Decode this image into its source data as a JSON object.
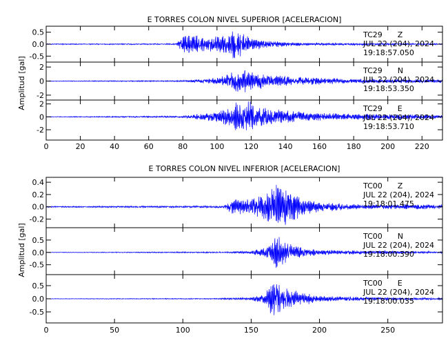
{
  "chart_data": [
    {
      "type": "line",
      "title": "E TORRES COLON NIVEL SUPERIOR [ACELERACION]",
      "ylabel": "Amplitud [gal]",
      "xlim": [
        0,
        232
      ],
      "xticks": [
        0,
        20,
        40,
        60,
        80,
        100,
        120,
        140,
        160,
        180,
        200,
        220
      ],
      "line_color": "#0000ff",
      "series": [
        {
          "name": "TC29 Z",
          "station": "TC29",
          "component": "Z",
          "date": "JUL 22 (204), 2024",
          "time": "19:18:57.050",
          "ylim": [
            -0.75,
            0.75
          ],
          "yticks": [
            "0.5",
            "0.0",
            "-0.5"
          ],
          "yticks_values": [
            0.5,
            0.0,
            -0.5
          ],
          "envelope": [
            [
              0,
              0.02
            ],
            [
              76,
              0.03
            ],
            [
              80,
              0.35
            ],
            [
              86,
              0.45
            ],
            [
              92,
              0.3
            ],
            [
              100,
              0.35
            ],
            [
              108,
              0.55
            ],
            [
              110,
              0.7
            ],
            [
              114,
              0.6
            ],
            [
              120,
              0.3
            ],
            [
              130,
              0.15
            ],
            [
              150,
              0.06
            ],
            [
              232,
              0.03
            ]
          ]
        },
        {
          "name": "TC29 N",
          "station": "TC29",
          "component": "N",
          "date": "JUL 22 (204), 2024",
          "time": "19:18:53.350",
          "ylim": [
            -2.7,
            2.7
          ],
          "yticks": [
            "2",
            "0",
            "-2"
          ],
          "yticks_values": [
            2,
            0,
            -2
          ],
          "envelope": [
            [
              0,
              0.05
            ],
            [
              80,
              0.1
            ],
            [
              96,
              0.4
            ],
            [
              104,
              0.8
            ],
            [
              110,
              1.5
            ],
            [
              114,
              1.9
            ],
            [
              120,
              1.4
            ],
            [
              130,
              0.9
            ],
            [
              150,
              0.6
            ],
            [
              180,
              0.3
            ],
            [
              232,
              0.25
            ]
          ]
        },
        {
          "name": "TC29 E",
          "station": "TC29",
          "component": "E",
          "date": "JUL 22 (204), 2024",
          "time": "19:18:53.710",
          "ylim": [
            -3.6,
            2.6
          ],
          "yticks": [
            "2",
            "0",
            "-2"
          ],
          "yticks_values": [
            2,
            0,
            -2
          ],
          "envelope": [
            [
              0,
              0.05
            ],
            [
              80,
              0.15
            ],
            [
              100,
              0.8
            ],
            [
              108,
              2.0
            ],
            [
              112,
              2.4
            ],
            [
              118,
              2.6
            ],
            [
              124,
              2.0
            ],
            [
              130,
              1.5
            ],
            [
              140,
              1.0
            ],
            [
              160,
              0.6
            ],
            [
              232,
              0.3
            ]
          ]
        }
      ]
    },
    {
      "type": "line",
      "title": "E TORRES COLON NIVEL INFERIOR [ACELERACION]",
      "ylabel": "Amplitud [gal]",
      "xlim": [
        0,
        290
      ],
      "xticks": [
        0,
        50,
        100,
        150,
        200,
        250
      ],
      "line_color": "#0000ff",
      "series": [
        {
          "name": "TC00 Z",
          "station": "TC00",
          "component": "Z",
          "date": "JUL 22 (204), 2024",
          "time": "19:18:01.475",
          "ylim": [
            -0.34,
            0.48
          ],
          "yticks": [
            "0.4",
            "0.2",
            "0.0",
            "-0.2"
          ],
          "yticks_values": [
            0.4,
            0.2,
            0.0,
            -0.2
          ],
          "envelope": [
            [
              0,
              0.01
            ],
            [
              130,
              0.02
            ],
            [
              136,
              0.12
            ],
            [
              150,
              0.15
            ],
            [
              160,
              0.22
            ],
            [
              166,
              0.32
            ],
            [
              170,
              0.4
            ],
            [
              176,
              0.3
            ],
            [
              185,
              0.18
            ],
            [
              200,
              0.08
            ],
            [
              230,
              0.04
            ],
            [
              290,
              0.04
            ]
          ]
        },
        {
          "name": "TC00 N",
          "station": "TC00",
          "component": "N",
          "date": "JUL 22 (204), 2024",
          "time": "19:18:00.390",
          "ylim": [
            -0.9,
            1.0
          ],
          "yticks": [
            "0.5",
            "0.0",
            "-0.5"
          ],
          "yticks_values": [
            0.5,
            0.0,
            -0.5
          ],
          "envelope": [
            [
              0,
              0.01
            ],
            [
              130,
              0.03
            ],
            [
              150,
              0.06
            ],
            [
              162,
              0.25
            ],
            [
              168,
              0.8
            ],
            [
              172,
              0.6
            ],
            [
              180,
              0.3
            ],
            [
              200,
              0.1
            ],
            [
              290,
              0.04
            ]
          ]
        },
        {
          "name": "TC00 E",
          "station": "TC00",
          "component": "E",
          "date": "JUL 22 (204), 2024",
          "time": "19:18:00.035",
          "ylim": [
            -0.92,
            0.92
          ],
          "yticks": [
            "0.5",
            "0.0",
            "-0.5"
          ],
          "yticks_values": [
            0.5,
            0.0,
            -0.5
          ],
          "envelope": [
            [
              0,
              0.01
            ],
            [
              120,
              0.02
            ],
            [
              150,
              0.06
            ],
            [
              160,
              0.2
            ],
            [
              166,
              0.75
            ],
            [
              170,
              0.6
            ],
            [
              180,
              0.35
            ],
            [
              200,
              0.12
            ],
            [
              240,
              0.06
            ],
            [
              290,
              0.04
            ]
          ]
        }
      ]
    }
  ]
}
